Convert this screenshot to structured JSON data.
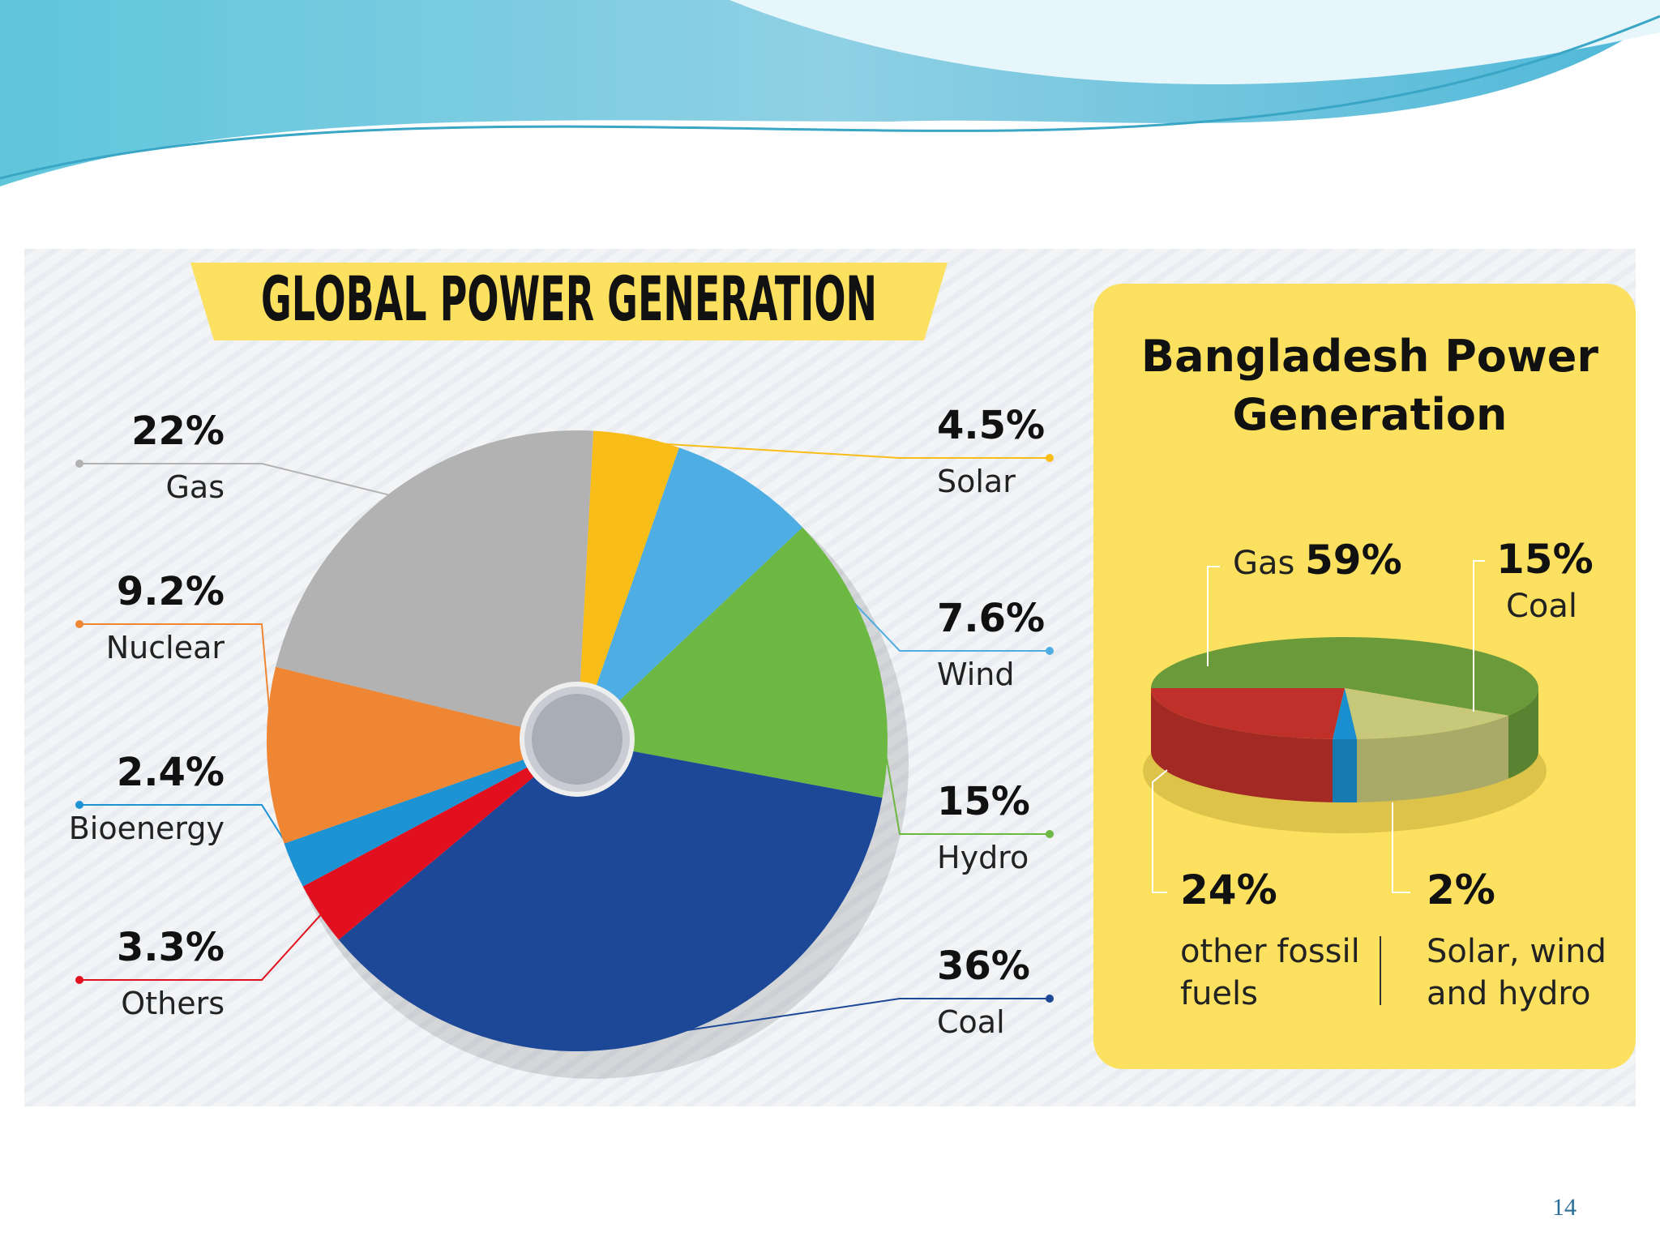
{
  "chart_data": [
    {
      "type": "pie",
      "title": "GLOBAL POWER GENERATION",
      "categories": [
        "Solar",
        "Wind",
        "Hydro",
        "Coal",
        "Others",
        "Bioenergy",
        "Nuclear",
        "Gas"
      ],
      "values": [
        4.5,
        7.6,
        15,
        36,
        3.3,
        2.4,
        9.2,
        22
      ],
      "value_labels": [
        "4.5%",
        "7.6%",
        "15%",
        "36%",
        "3.3%",
        "2.4%",
        "9.2%",
        "22%"
      ],
      "colors": [
        "#f9bd1a",
        "#4eaee3",
        "#6db843",
        "#1c4897",
        "#e2101e",
        "#1d93d4",
        "#ef8634",
        "#b3b2b2"
      ]
    },
    {
      "type": "pie3d",
      "title": "Bangladesh Power Generation",
      "categories": [
        "Gas",
        "Coal",
        "Solar, wind and hydro",
        "other fossil fuels"
      ],
      "values": [
        59,
        15,
        2,
        24
      ],
      "value_labels": [
        "59%",
        "15%",
        "2%",
        "24%"
      ],
      "colors": [
        "#6a9a3a",
        "#c8c87a",
        "#1a8fd0",
        "#c0302a"
      ]
    }
  ],
  "page_number": "14"
}
